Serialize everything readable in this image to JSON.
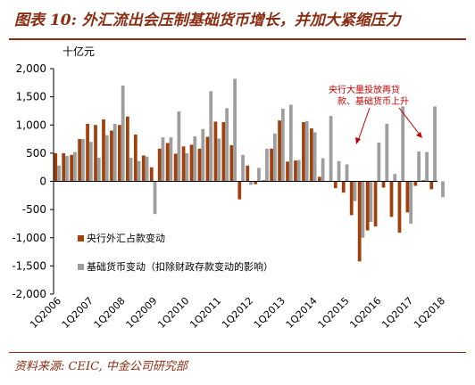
{
  "header": {
    "figure_title": "图表 10: 外汇流出会压制基础货币增长，并加大紧缩压力"
  },
  "footer": {
    "source": "资料来源: CEIC, 中金公司研究部"
  },
  "colors": {
    "brand": "#8b2d12",
    "series_fx": "#a0410d",
    "series_base": "#9e9e9e",
    "annotation": "#c00000"
  },
  "chart_data": {
    "type": "bar",
    "unit_label": "十亿元",
    "ylim": [
      -2000,
      2000
    ],
    "yticks": [
      "2,000",
      "1,500",
      "1,000",
      "500",
      "0",
      "-500",
      "-1,000",
      "-1,500",
      "-2,000"
    ],
    "ytick_values": [
      2000,
      1500,
      1000,
      500,
      0,
      -500,
      -1000,
      -1500,
      -2000
    ],
    "x_start": "2006-01",
    "xtick_labels": [
      "1Q2006",
      "1Q2007",
      "1Q2008",
      "1Q2009",
      "1Q2010",
      "1Q2011",
      "1Q2012",
      "1Q2013",
      "1Q2014",
      "1Q2015",
      "1Q2016",
      "1Q2017",
      "1Q2018"
    ],
    "grid": false,
    "legend_position": "lower-left",
    "series": [
      {
        "name": "央行外汇占款变动",
        "values": [
          500,
          500,
          470,
          750,
          1020,
          1000,
          1100,
          900,
          1000,
          1150,
          830,
          460,
          250,
          580,
          680,
          490,
          620,
          650,
          580,
          790,
          1060,
          1050,
          640,
          -320,
          280,
          -50,
          20,
          580,
          1080,
          350,
          370,
          1050,
          940,
          80,
          -10,
          -120,
          -200,
          -600,
          -1420,
          -870,
          -800,
          -110,
          -630,
          -910,
          -550,
          -80,
          20,
          -140
        ]
      },
      {
        "name": "基础货币变动（扣除财政存款变动的影响）",
        "values": [
          280,
          450,
          520,
          750,
          700,
          420,
          820,
          1020,
          1700,
          420,
          360,
          440,
          -580,
          780,
          780,
          1240,
          500,
          800,
          930,
          1600,
          760,
          1300,
          1820,
          470,
          -60,
          240,
          580,
          850,
          1290,
          1360,
          380,
          1070,
          870,
          410,
          1160,
          360,
          300,
          -350,
          -1000,
          -720,
          690,
          1020,
          130,
          1330,
          -750,
          530,
          520,
          1330,
          -280
        ]
      }
    ],
    "annotation": {
      "line1": "央行大量投放再贷",
      "line2": "款、基础货币上升"
    }
  }
}
